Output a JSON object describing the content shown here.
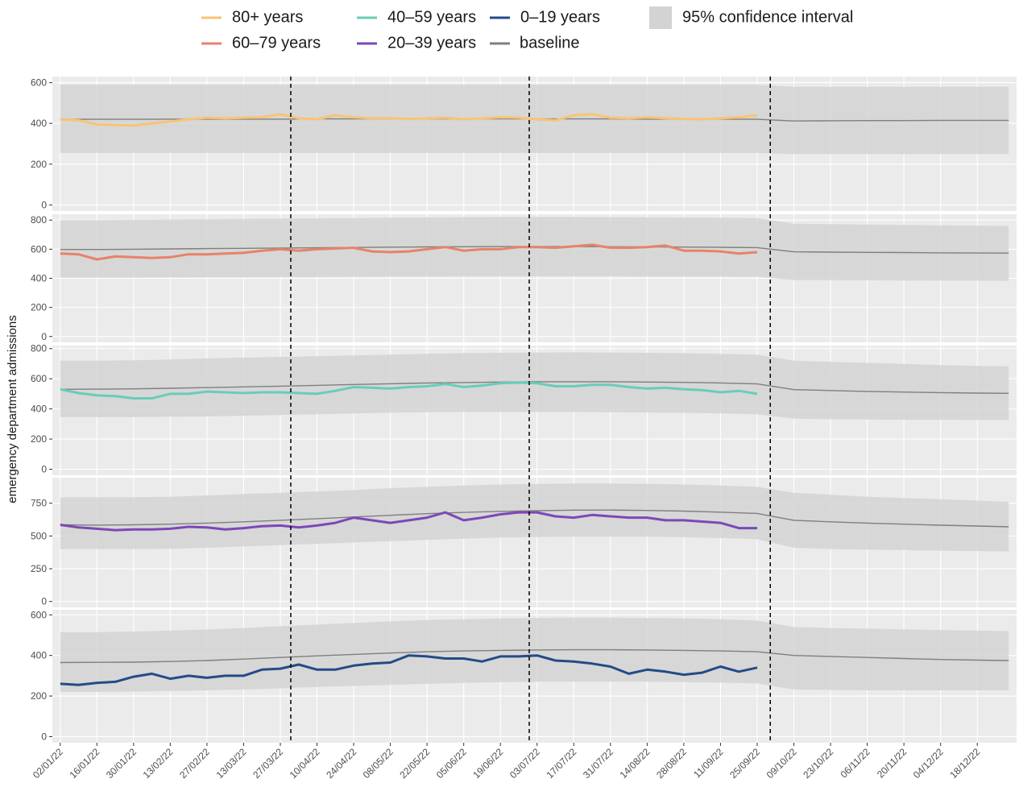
{
  "chart_data": {
    "type": "line",
    "y_label": "emergency department admissions",
    "xlim": [
      "30/12/21",
      "02/01/23"
    ],
    "xticks": [
      "02/01/22",
      "16/01/22",
      "30/01/22",
      "13/02/22",
      "27/02/22",
      "13/03/22",
      "27/03/22",
      "10/04/22",
      "24/04/22",
      "08/05/22",
      "22/05/22",
      "05/06/22",
      "19/06/22",
      "03/07/22",
      "17/07/22",
      "31/07/22",
      "14/08/22",
      "28/08/22",
      "11/09/22",
      "25/09/22",
      "09/10/22",
      "23/10/22",
      "06/11/22",
      "20/11/22",
      "04/12/22",
      "18/12/22"
    ],
    "vlines": [
      "31/03/22",
      "30/06/22",
      "30/09/22"
    ],
    "x": [
      "02/01/22",
      "09/01/22",
      "16/01/22",
      "23/01/22",
      "30/01/22",
      "06/02/22",
      "13/02/22",
      "20/02/22",
      "27/02/22",
      "06/03/22",
      "13/03/22",
      "20/03/22",
      "27/03/22",
      "03/04/22",
      "10/04/22",
      "17/04/22",
      "24/04/22",
      "01/05/22",
      "08/05/22",
      "15/05/22",
      "22/05/22",
      "29/05/22",
      "05/06/22",
      "12/06/22",
      "19/06/22",
      "26/06/22",
      "03/07/22",
      "10/07/22",
      "17/07/22",
      "24/07/22",
      "31/07/22",
      "07/08/22",
      "14/08/22",
      "21/08/22",
      "28/08/22",
      "04/09/22",
      "11/09/22",
      "18/09/22",
      "25/09/22"
    ],
    "baseline_x": [
      "02/01/22",
      "16/01/22",
      "30/01/22",
      "13/02/22",
      "27/02/22",
      "13/03/22",
      "27/03/22",
      "10/04/22",
      "24/04/22",
      "08/05/22",
      "22/05/22",
      "05/06/22",
      "19/06/22",
      "03/07/22",
      "17/07/22",
      "31/07/22",
      "14/08/22",
      "28/08/22",
      "11/09/22",
      "25/09/22",
      "09/10/22",
      "23/10/22",
      "06/11/22",
      "20/11/22",
      "04/12/22",
      "18/12/22",
      "30/12/22"
    ],
    "baseline": {
      "name": "baseline",
      "color": "#7f7f7f"
    },
    "ci": {
      "name": "95% confidence interval",
      "color": "#d3d3d3"
    },
    "facets": [
      {
        "name": "80+ years",
        "color": "#f9c374",
        "ylim": [
          -30,
          630
        ],
        "yticks": [
          0,
          200,
          400,
          600
        ],
        "values": [
          420,
          415,
          395,
          392,
          390,
          400,
          410,
          420,
          428,
          425,
          428,
          430,
          445,
          425,
          420,
          440,
          430,
          425,
          425,
          422,
          425,
          428,
          420,
          425,
          430,
          428,
          420,
          415,
          440,
          445,
          428,
          425,
          430,
          425,
          422,
          420,
          425,
          430,
          440
        ],
        "baseline_values": [
          420,
          420,
          420,
          421,
          421,
          421,
          421,
          422,
          422,
          422,
          422,
          422,
          422,
          422,
          422,
          422,
          421,
          421,
          421,
          420,
          412,
          413,
          414,
          414,
          415,
          415,
          415
        ],
        "ci_lower": [
          255,
          255,
          255,
          255,
          255,
          255,
          255,
          255,
          255,
          255,
          255,
          255,
          255,
          255,
          255,
          255,
          255,
          255,
          255,
          255,
          250,
          250,
          250,
          250,
          250,
          250,
          250
        ],
        "ci_upper": [
          590,
          590,
          590,
          590,
          590,
          590,
          590,
          590,
          590,
          590,
          590,
          590,
          590,
          590,
          590,
          590,
          590,
          590,
          590,
          590,
          580,
          580,
          580,
          580,
          580,
          580,
          580
        ]
      },
      {
        "name": "60–79 years",
        "color": "#e8826a",
        "ylim": [
          -40,
          840
        ],
        "yticks": [
          0,
          200,
          400,
          600,
          800
        ],
        "values": [
          570,
          565,
          530,
          550,
          545,
          540,
          545,
          565,
          565,
          570,
          575,
          590,
          600,
          590,
          600,
          605,
          610,
          585,
          580,
          585,
          600,
          615,
          590,
          600,
          600,
          615,
          615,
          610,
          620,
          630,
          610,
          610,
          615,
          625,
          590,
          590,
          585,
          570,
          580
        ],
        "baseline_values": [
          598,
          598,
          600,
          602,
          604,
          606,
          608,
          610,
          612,
          614,
          616,
          617,
          618,
          618,
          618,
          617,
          616,
          615,
          613,
          611,
          582,
          580,
          578,
          577,
          575,
          574,
          573
        ],
        "ci_lower": [
          405,
          405,
          405,
          406,
          407,
          408,
          409,
          410,
          411,
          412,
          413,
          414,
          414,
          414,
          414,
          414,
          413,
          413,
          412,
          411,
          388,
          387,
          386,
          385,
          384,
          384,
          383
        ],
        "ci_upper": [
          800,
          800,
          802,
          804,
          806,
          808,
          810,
          812,
          814,
          816,
          818,
          820,
          821,
          821,
          821,
          820,
          819,
          818,
          816,
          814,
          775,
          772,
          769,
          766,
          764,
          762,
          760
        ]
      },
      {
        "name": "40–59 years",
        "color": "#69cdb7",
        "ylim": [
          -40,
          820
        ],
        "yticks": [
          0,
          200,
          400,
          600,
          800
        ],
        "values": [
          530,
          505,
          490,
          485,
          470,
          470,
          500,
          500,
          515,
          510,
          505,
          510,
          510,
          505,
          500,
          520,
          545,
          540,
          535,
          545,
          550,
          565,
          545,
          555,
          570,
          575,
          570,
          550,
          550,
          560,
          560,
          545,
          535,
          540,
          530,
          525,
          510,
          520,
          500
        ],
        "baseline_values": [
          530,
          531,
          533,
          537,
          541,
          546,
          551,
          556,
          562,
          567,
          572,
          575,
          578,
          580,
          580,
          580,
          578,
          576,
          572,
          566,
          528,
          522,
          516,
          512,
          508,
          505,
          503
        ],
        "ci_lower": [
          345,
          345,
          345,
          348,
          350,
          355,
          360,
          365,
          370,
          375,
          378,
          380,
          380,
          380,
          380,
          378,
          376,
          374,
          370,
          365,
          335,
          332,
          330,
          328,
          328,
          327,
          327
        ],
        "ci_upper": [
          720,
          720,
          722,
          728,
          735,
          740,
          745,
          750,
          755,
          760,
          765,
          770,
          772,
          774,
          775,
          774,
          772,
          770,
          765,
          760,
          720,
          712,
          705,
          698,
          690,
          685,
          682
        ]
      },
      {
        "name": "20–39 years",
        "color": "#7d47b8",
        "ylim": [
          -45,
          945
        ],
        "yticks": [
          0,
          250,
          500,
          750
        ],
        "values": [
          585,
          565,
          555,
          545,
          550,
          550,
          555,
          570,
          565,
          550,
          560,
          575,
          580,
          565,
          580,
          600,
          640,
          620,
          600,
          620,
          640,
          680,
          620,
          640,
          665,
          680,
          680,
          650,
          640,
          660,
          650,
          640,
          640,
          620,
          620,
          610,
          600,
          560,
          560
        ],
        "baseline_values": [
          585,
          583,
          585,
          590,
          598,
          608,
          620,
          632,
          645,
          658,
          670,
          680,
          688,
          693,
          697,
          698,
          695,
          690,
          682,
          672,
          620,
          608,
          598,
          590,
          582,
          576,
          570
        ],
        "ci_lower": [
          400,
          400,
          400,
          402,
          410,
          420,
          430,
          440,
          450,
          460,
          470,
          480,
          488,
          492,
          495,
          495,
          494,
          490,
          485,
          475,
          410,
          400,
          395,
          392,
          388,
          385,
          382
        ],
        "ci_upper": [
          795,
          795,
          795,
          800,
          810,
          820,
          830,
          840,
          850,
          865,
          875,
          885,
          893,
          897,
          900,
          900,
          898,
          893,
          885,
          875,
          830,
          815,
          800,
          790,
          780,
          770,
          760
        ]
      },
      {
        "name": "0–19 years",
        "color": "#234b87",
        "ylim": [
          -30,
          625
        ],
        "yticks": [
          0,
          200,
          400,
          600
        ],
        "values": [
          260,
          255,
          265,
          270,
          295,
          310,
          285,
          300,
          290,
          300,
          300,
          330,
          335,
          355,
          330,
          330,
          350,
          360,
          365,
          400,
          395,
          385,
          385,
          370,
          395,
          395,
          400,
          375,
          370,
          360,
          345,
          310,
          330,
          320,
          305,
          315,
          345,
          320,
          340
        ],
        "baseline_values": [
          365,
          366,
          367,
          370,
          375,
          382,
          390,
          398,
          405,
          412,
          418,
          422,
          425,
          427,
          428,
          428,
          427,
          425,
          422,
          418,
          400,
          395,
          390,
          385,
          380,
          377,
          375
        ],
        "ci_lower": [
          220,
          220,
          222,
          225,
          228,
          232,
          238,
          245,
          250,
          255,
          260,
          265,
          268,
          270,
          270,
          270,
          270,
          268,
          266,
          262,
          232,
          230,
          228,
          228,
          228,
          228,
          228
        ],
        "ci_upper": [
          515,
          515,
          518,
          522,
          528,
          535,
          545,
          552,
          560,
          568,
          575,
          578,
          582,
          585,
          586,
          586,
          585,
          583,
          578,
          572,
          540,
          535,
          532,
          528,
          525,
          522,
          520
        ]
      }
    ]
  }
}
